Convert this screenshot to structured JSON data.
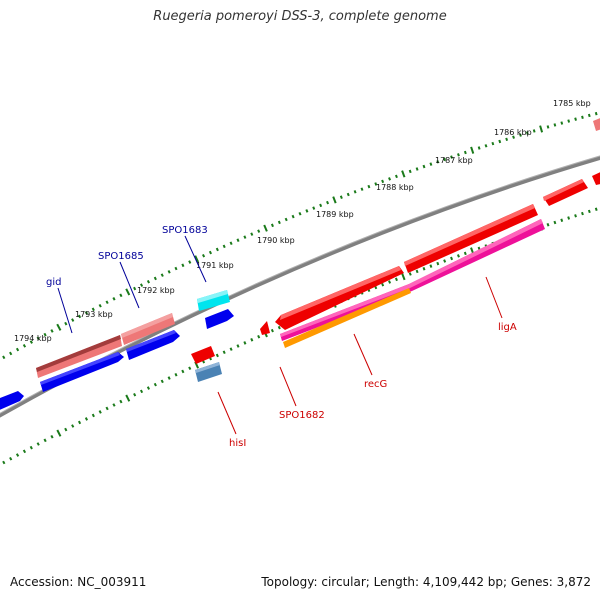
{
  "title": "Ruegeria pomeroyi DSS-3, complete genome",
  "footer": {
    "accession": "Accession: NC_003911",
    "summary": "Topology: circular; Length: 4,109,442 bp; Genes: 3,872"
  },
  "scale": {
    "ticks": [
      "1794 kbp",
      "1793 kbp",
      "1792 kbp",
      "1791 kbp",
      "1790 kbp",
      "1789 kbp",
      "1788 kbp",
      "1787 kbp",
      "1786 kbp",
      "1785 kbp"
    ]
  },
  "genes": {
    "forward_labels": [
      "gid",
      "SPO1685",
      "SPO1683"
    ],
    "reverse_labels": [
      "hisI",
      "SPO1682",
      "recG",
      "ligA"
    ]
  },
  "colors": {
    "backbone": "#808080",
    "tick": "#1a7a1a",
    "forward_label": "#000099",
    "reverse_label": "#cc0000",
    "blue_gene": "#0000ee",
    "red_gene": "#ee0000",
    "pink_gene": "#ee7777",
    "cyan_gene": "#00e5ee",
    "magenta_gene": "#ee1199",
    "orange_gene": "#ff9900",
    "steel_gene": "#4a82b4"
  }
}
